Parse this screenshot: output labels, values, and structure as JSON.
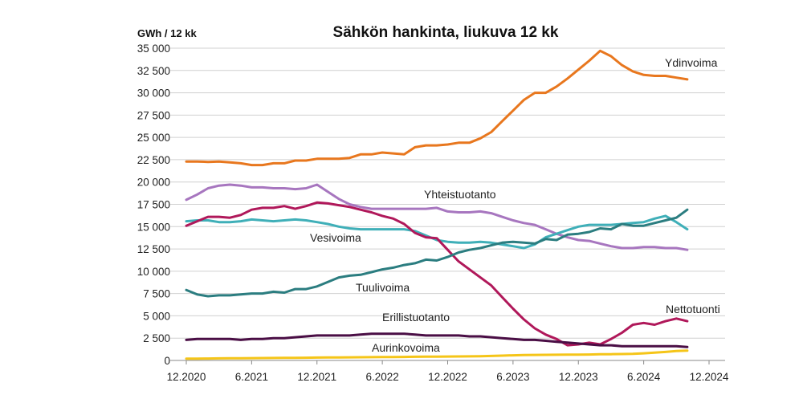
{
  "chart_data": {
    "type": "line",
    "title": "Sähkön hankinta, liukuva 12 kk",
    "ylabel": "GWh / 12 kk",
    "xlabel": "",
    "ylim": [
      0,
      35000
    ],
    "yticks": [
      0,
      2500,
      5000,
      7500,
      10000,
      12500,
      15000,
      17500,
      20000,
      22500,
      25000,
      27500,
      30000,
      32500,
      35000
    ],
    "ytick_labels": [
      "0",
      "2 500",
      "5 000",
      "7 500",
      "10 000",
      "12 500",
      "15 000",
      "17 500",
      "20 000",
      "22 500",
      "25 000",
      "27 500",
      "30 000",
      "32 500",
      "35 000"
    ],
    "x_start": "12.2020",
    "x_ticks": [
      "12.2020",
      "6.2021",
      "12.2021",
      "6.2022",
      "12.2022",
      "6.2023",
      "12.2023",
      "6.2024",
      "12.2024"
    ],
    "grid": "horizontal",
    "legend": "inline labels",
    "series": [
      {
        "name": "Ydinvoima",
        "color": "#E8771E",
        "values": [
          22300,
          22300,
          22250,
          22300,
          22200,
          22100,
          21900,
          21900,
          22100,
          22100,
          22400,
          22400,
          22600,
          22600,
          22600,
          22700,
          23100,
          23100,
          23300,
          23200,
          23100,
          23900,
          24100,
          24100,
          24200,
          24400,
          24400,
          24900,
          25600,
          26800,
          28000,
          29200,
          30000,
          30000,
          30700,
          31600,
          32600,
          33600,
          34700,
          34100,
          33100,
          32400,
          32000,
          31900,
          31900,
          31700,
          31500
        ]
      },
      {
        "name": "Yhteistuotanto",
        "color": "#A776BF",
        "values": [
          18000,
          18600,
          19300,
          19600,
          19700,
          19600,
          19400,
          19400,
          19300,
          19300,
          19200,
          19300,
          19700,
          18900,
          18100,
          17500,
          17200,
          17000,
          17000,
          17000,
          17000,
          17000,
          17000,
          17100,
          16700,
          16600,
          16600,
          16700,
          16500,
          16100,
          15700,
          15400,
          15200,
          14700,
          14200,
          13800,
          13500,
          13400,
          13100,
          12800,
          12600,
          12600,
          12700,
          12700,
          12600,
          12600,
          12400
        ]
      },
      {
        "name": "Vesivoima",
        "color": "#3FAFB8",
        "values": [
          15600,
          15700,
          15700,
          15500,
          15500,
          15600,
          15800,
          15700,
          15600,
          15700,
          15800,
          15700,
          15500,
          15300,
          15000,
          14800,
          14700,
          14700,
          14700,
          14700,
          14700,
          14500,
          14000,
          13500,
          13300,
          13200,
          13200,
          13300,
          13200,
          13000,
          12800,
          12600,
          13000,
          13800,
          14200,
          14600,
          15000,
          15200,
          15200,
          15200,
          15300,
          15400,
          15500,
          15900,
          16200,
          15500,
          14700
        ]
      },
      {
        "name": "Nettotuonti",
        "color": "#B0185A",
        "values": [
          15100,
          15600,
          16100,
          16100,
          16000,
          16300,
          16900,
          17100,
          17100,
          17300,
          17000,
          17300,
          17700,
          17600,
          17400,
          17200,
          16900,
          16600,
          16200,
          15900,
          15300,
          14300,
          13800,
          13700,
          12400,
          11100,
          10200,
          9300,
          8400,
          7100,
          5800,
          4600,
          3600,
          2900,
          2400,
          1700,
          1800,
          2000,
          1800,
          2400,
          3100,
          4000,
          4200,
          4000,
          4400,
          4700,
          4400
        ]
      },
      {
        "name": "Tuulivoima",
        "color": "#2B7D80",
        "values": [
          7900,
          7400,
          7200,
          7300,
          7300,
          7400,
          7500,
          7500,
          7700,
          7600,
          8000,
          8000,
          8300,
          8800,
          9300,
          9500,
          9600,
          9900,
          10200,
          10400,
          10700,
          10900,
          11300,
          11200,
          11600,
          12100,
          12400,
          12600,
          12900,
          13200,
          13300,
          13200,
          13100,
          13600,
          13500,
          14100,
          14200,
          14400,
          14800,
          14700,
          15300,
          15100,
          15100,
          15400,
          15700,
          16000,
          16900
        ]
      },
      {
        "name": "Erillistuotanto",
        "color": "#4A0E45",
        "values": [
          2300,
          2400,
          2400,
          2400,
          2400,
          2300,
          2400,
          2400,
          2500,
          2500,
          2600,
          2700,
          2800,
          2800,
          2800,
          2800,
          2900,
          3000,
          3000,
          3000,
          3000,
          2900,
          2800,
          2800,
          2800,
          2800,
          2700,
          2700,
          2600,
          2500,
          2400,
          2300,
          2300,
          2200,
          2100,
          2000,
          1900,
          1800,
          1700,
          1700,
          1600,
          1600,
          1600,
          1600,
          1600,
          1600,
          1500
        ]
      },
      {
        "name": "Aurinkovoima",
        "color": "#F5C518",
        "values": [
          200,
          200,
          220,
          230,
          240,
          250,
          260,
          270,
          280,
          290,
          300,
          310,
          320,
          330,
          340,
          350,
          360,
          370,
          380,
          390,
          400,
          410,
          420,
          430,
          440,
          450,
          460,
          480,
          500,
          540,
          580,
          610,
          620,
          630,
          640,
          650,
          660,
          670,
          690,
          700,
          720,
          750,
          800,
          870,
          950,
          1050,
          1100
        ]
      }
    ]
  }
}
